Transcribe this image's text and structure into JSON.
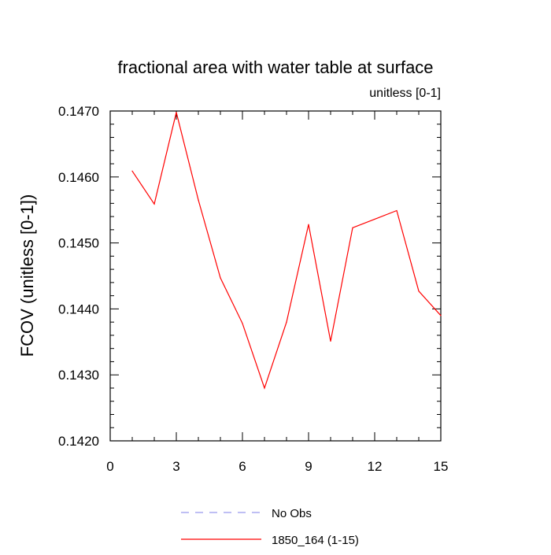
{
  "chart_data": {
    "type": "line",
    "title": "fractional area with water table at surface",
    "subtitle": "unitless [0-1]",
    "ylabel": "FCOV  (unitless [0-1])",
    "xlabel": "",
    "xlim": [
      0,
      15
    ],
    "ylim": [
      0.142,
      0.147
    ],
    "x_ticks": [
      0,
      3,
      6,
      9,
      12,
      15
    ],
    "x_tick_labels": [
      "0",
      "3",
      "6",
      "9",
      "12",
      "15"
    ],
    "y_ticks": [
      0.142,
      0.143,
      0.144,
      0.145,
      0.146,
      0.147
    ],
    "y_tick_labels": [
      "0.1420",
      "0.1430",
      "0.1440",
      "0.1450",
      "0.1460",
      "0.1470"
    ],
    "grid": false,
    "legend_placement": "bottom",
    "series": [
      {
        "name": "No Obs",
        "color": "#9999ee",
        "dashed": true,
        "x": [],
        "y": []
      },
      {
        "name": "1850_164 (1-15)",
        "color": "#ff0000",
        "dashed": false,
        "x": [
          1,
          2,
          3,
          4,
          5,
          6,
          7,
          8,
          9,
          10,
          11,
          12,
          13,
          14,
          15
        ],
        "y": [
          0.14609,
          0.14559,
          0.14698,
          0.14565,
          0.14447,
          0.14378,
          0.1428,
          0.1438,
          0.14528,
          0.14351,
          0.14523,
          0.14536,
          0.14549,
          0.14427,
          0.1439
        ]
      }
    ]
  }
}
